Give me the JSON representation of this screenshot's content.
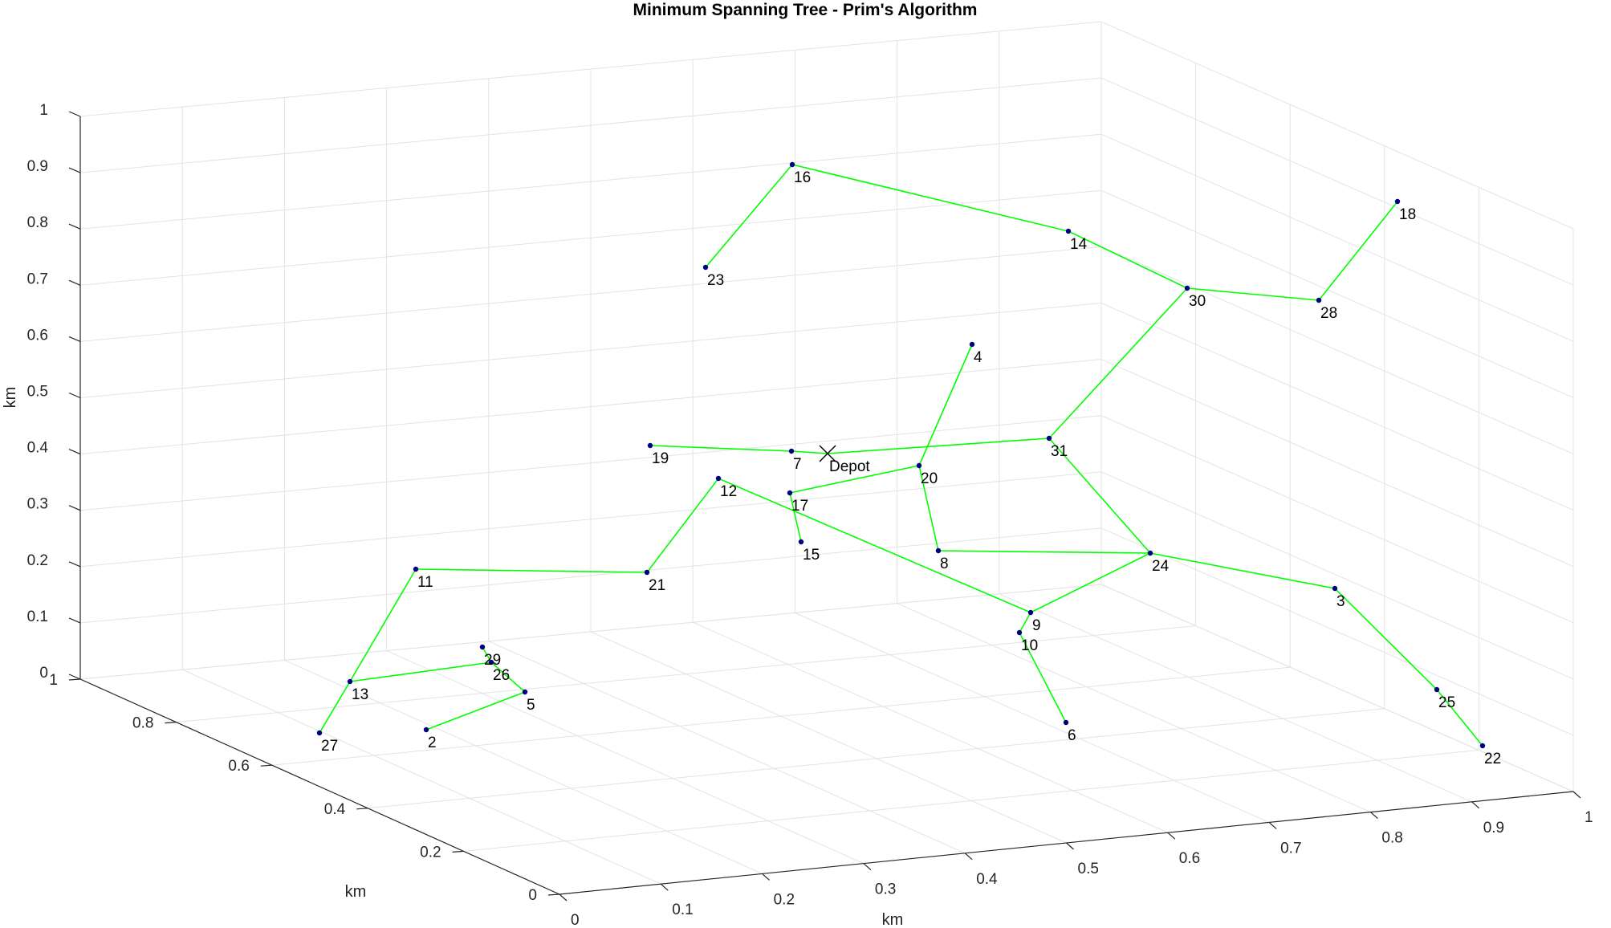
{
  "chart_data": {
    "type": "scatter3d-graph",
    "title": "Minimum Spanning Tree - Prim's Algorithm",
    "xlabel": "km",
    "ylabel": "km",
    "zlabel": "km",
    "x_ticks": [
      "0",
      "0.1",
      "0.2",
      "0.3",
      "0.4",
      "0.5",
      "0.6",
      "0.7",
      "0.8",
      "0.9",
      "1"
    ],
    "y_ticks": [
      "0",
      "0.2",
      "0.4",
      "0.6",
      "0.8",
      "1"
    ],
    "z_ticks": [
      "0",
      "0.1",
      "0.2",
      "0.3",
      "0.4",
      "0.5",
      "0.6",
      "0.7",
      "0.8",
      "0.9",
      "1"
    ],
    "grid": true,
    "colors": {
      "edge": "#00ff00",
      "node": "#000080",
      "grid": "#e3e3e3",
      "axis": "#262626"
    },
    "nodes": [
      {
        "label": "Depot",
        "marker": "x",
        "sx": 1031,
        "sy": 565
      },
      {
        "label": "2",
        "sx": 531,
        "sy": 909
      },
      {
        "label": "3",
        "sx": 1663,
        "sy": 733
      },
      {
        "label": "4",
        "sx": 1211,
        "sy": 429
      },
      {
        "label": "5",
        "sx": 654,
        "sy": 862
      },
      {
        "label": "6",
        "sx": 1328,
        "sy": 900
      },
      {
        "label": "7",
        "sx": 986,
        "sy": 562
      },
      {
        "label": "8",
        "sx": 1169,
        "sy": 686
      },
      {
        "label": "9",
        "sx": 1284,
        "sy": 763
      },
      {
        "label": "10",
        "sx": 1270,
        "sy": 788
      },
      {
        "label": "11",
        "sx": 518,
        "sy": 709
      },
      {
        "label": "12",
        "sx": 895,
        "sy": 596
      },
      {
        "label": "13",
        "sx": 436,
        "sy": 849
      },
      {
        "label": "14",
        "sx": 1331,
        "sy": 288
      },
      {
        "label": "15",
        "sx": 998,
        "sy": 675
      },
      {
        "label": "16",
        "sx": 987,
        "sy": 205
      },
      {
        "label": "17",
        "sx": 984,
        "sy": 614
      },
      {
        "label": "18",
        "sx": 1741,
        "sy": 251
      },
      {
        "label": "19",
        "sx": 810,
        "sy": 555
      },
      {
        "label": "20",
        "sx": 1145,
        "sy": 580
      },
      {
        "label": "21",
        "sx": 806,
        "sy": 713
      },
      {
        "label": "22",
        "sx": 1847,
        "sy": 929
      },
      {
        "label": "23",
        "sx": 879,
        "sy": 333
      },
      {
        "label": "24",
        "sx": 1433,
        "sy": 689
      },
      {
        "label": "25",
        "sx": 1790,
        "sy": 859
      },
      {
        "label": "26",
        "sx": 612,
        "sy": 825
      },
      {
        "label": "27",
        "sx": 398,
        "sy": 913
      },
      {
        "label": "28",
        "sx": 1643,
        "sy": 374
      },
      {
        "label": "29",
        "sx": 601,
        "sy": 806
      },
      {
        "label": "30",
        "sx": 1479,
        "sy": 359
      },
      {
        "label": "31",
        "sx": 1307,
        "sy": 546
      }
    ],
    "edges": [
      [
        "Depot",
        "7"
      ],
      [
        "7",
        "19"
      ],
      [
        "Depot",
        "31"
      ],
      [
        "31",
        "30"
      ],
      [
        "30",
        "14"
      ],
      [
        "14",
        "16"
      ],
      [
        "16",
        "23"
      ],
      [
        "30",
        "28"
      ],
      [
        "28",
        "18"
      ],
      [
        "31",
        "24"
      ],
      [
        "24",
        "3"
      ],
      [
        "3",
        "25"
      ],
      [
        "25",
        "22"
      ],
      [
        "24",
        "8"
      ],
      [
        "8",
        "20"
      ],
      [
        "20",
        "4"
      ],
      [
        "20",
        "17"
      ],
      [
        "17",
        "15"
      ],
      [
        "24",
        "9"
      ],
      [
        "9",
        "10"
      ],
      [
        "10",
        "6"
      ],
      [
        "9",
        "12"
      ],
      [
        "12",
        "21"
      ],
      [
        "21",
        "11"
      ],
      [
        "11",
        "13"
      ],
      [
        "13",
        "27"
      ],
      [
        "13",
        "26"
      ],
      [
        "26",
        "29"
      ],
      [
        "26",
        "5"
      ],
      [
        "5",
        "2"
      ]
    ]
  }
}
